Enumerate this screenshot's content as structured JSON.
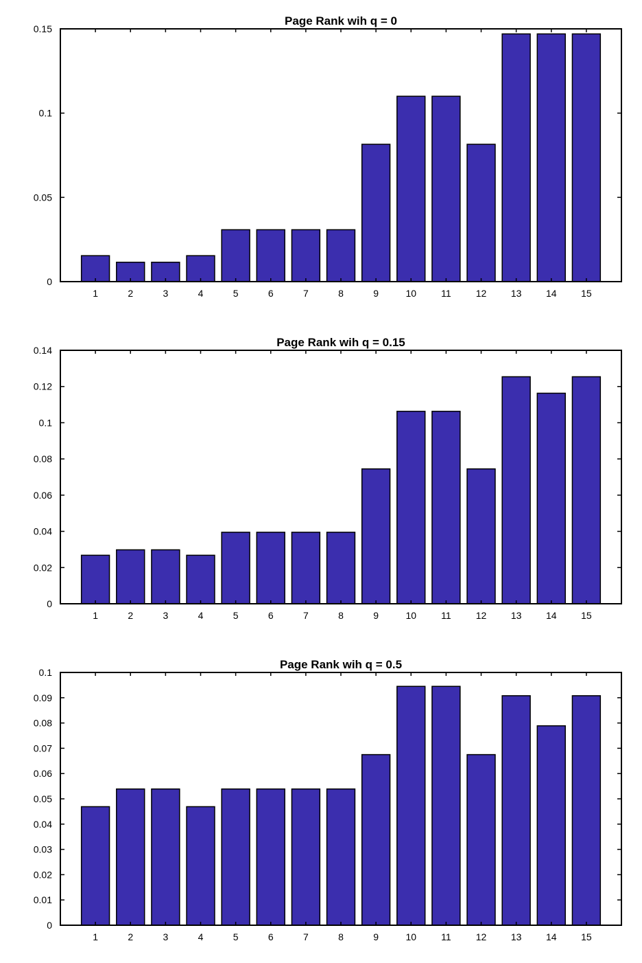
{
  "colors": {
    "bar_fill": "#3b2eae",
    "bar_edge": "#000000",
    "axis": "#000000",
    "background": "#ffffff"
  },
  "chart_data": [
    {
      "type": "bar",
      "title": "Page Rank wih q = 0",
      "xlabel": "",
      "ylabel": "",
      "categories": [
        "1",
        "2",
        "3",
        "4",
        "5",
        "6",
        "7",
        "8",
        "9",
        "10",
        "11",
        "12",
        "13",
        "14",
        "15"
      ],
      "values": [
        0.0154,
        0.0115,
        0.0115,
        0.0154,
        0.0308,
        0.0308,
        0.0308,
        0.0308,
        0.0815,
        0.11,
        0.11,
        0.0815,
        0.147,
        0.147,
        0.147
      ],
      "ylim": [
        0,
        0.15
      ],
      "yticks": [
        "0",
        "0.05",
        "0.1",
        "0.15"
      ],
      "ytick_values": [
        0,
        0.05,
        0.1,
        0.15
      ],
      "grid": false,
      "legend": "none"
    },
    {
      "type": "bar",
      "title": "Page Rank wih q = 0.15",
      "xlabel": "",
      "ylabel": "",
      "categories": [
        "1",
        "2",
        "3",
        "4",
        "5",
        "6",
        "7",
        "8",
        "9",
        "10",
        "11",
        "12",
        "13",
        "14",
        "15"
      ],
      "values": [
        0.0268,
        0.0298,
        0.0298,
        0.0268,
        0.0395,
        0.0395,
        0.0395,
        0.0395,
        0.0745,
        0.1063,
        0.1063,
        0.0745,
        0.1254,
        0.1163,
        0.1254
      ],
      "ylim": [
        0,
        0.14
      ],
      "yticks": [
        "0",
        "0.02",
        "0.04",
        "0.06",
        "0.08",
        "0.1",
        "0.12",
        "0.14"
      ],
      "ytick_values": [
        0,
        0.02,
        0.04,
        0.06,
        0.08,
        0.1,
        0.12,
        0.14
      ],
      "grid": false,
      "legend": "none"
    },
    {
      "type": "bar",
      "title": "Page Rank wih q = 0.5",
      "xlabel": "",
      "ylabel": "",
      "categories": [
        "1",
        "2",
        "3",
        "4",
        "5",
        "6",
        "7",
        "8",
        "9",
        "10",
        "11",
        "12",
        "13",
        "14",
        "15"
      ],
      "values": [
        0.0469,
        0.0539,
        0.0539,
        0.0469,
        0.0539,
        0.0539,
        0.0539,
        0.0539,
        0.0675,
        0.0945,
        0.0945,
        0.0675,
        0.0908,
        0.0789,
        0.0908
      ],
      "ylim": [
        0,
        0.1
      ],
      "yticks": [
        "0",
        "0.01",
        "0.02",
        "0.03",
        "0.04",
        "0.05",
        "0.06",
        "0.07",
        "0.08",
        "0.09",
        "0.1"
      ],
      "ytick_values": [
        0,
        0.01,
        0.02,
        0.03,
        0.04,
        0.05,
        0.06,
        0.07,
        0.08,
        0.09,
        0.1
      ],
      "grid": false,
      "legend": "none"
    }
  ]
}
